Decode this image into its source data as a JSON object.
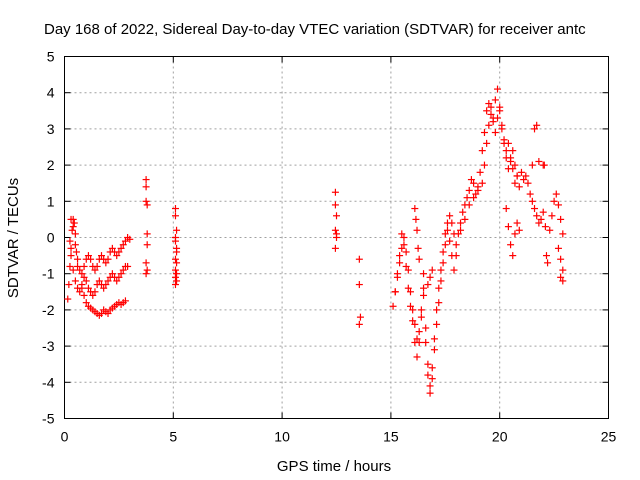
{
  "chart_data": {
    "type": "scatter",
    "title": "Day 168 of 2022, Sidereal Day-to-day VTEC variation (SDTVAR) for receiver antc",
    "xlabel": "GPS time / hours",
    "ylabel": "SDTVAR / TECUs",
    "xlim": [
      0,
      25
    ],
    "ylim": [
      -5,
      5
    ],
    "xticks": [
      0,
      5,
      10,
      15,
      20,
      25
    ],
    "yticks": [
      -5,
      -4,
      -3,
      -2,
      -1,
      0,
      1,
      2,
      3,
      4,
      5
    ],
    "grid": true,
    "marker": "+",
    "series": [
      {
        "name": "SDTVAR",
        "color": "#ff0000",
        "x": [
          0.15,
          0.2,
          0.25,
          0.3,
          0.35,
          0.4,
          0.45,
          0.5,
          0.55,
          0.6,
          0.25,
          0.3,
          0.4,
          0.5,
          0.6,
          0.7,
          0.8,
          0.9,
          1.0,
          1.1,
          1.2,
          1.3,
          1.4,
          1.5,
          1.6,
          1.7,
          1.8,
          1.9,
          2.0,
          2.1,
          2.2,
          2.3,
          2.4,
          2.5,
          2.6,
          2.7,
          2.8,
          2.9,
          3.0,
          0.3,
          0.4,
          0.5,
          0.6,
          0.7,
          0.8,
          0.9,
          1.0,
          1.1,
          1.2,
          1.3,
          1.4,
          1.5,
          1.6,
          1.7,
          1.8,
          1.9,
          2.0,
          2.1,
          2.2,
          2.3,
          2.4,
          2.5,
          2.6,
          2.7,
          2.8,
          2.9,
          0.8,
          0.9,
          1.0,
          1.1,
          1.2,
          1.3,
          1.4,
          1.5,
          1.6,
          1.7,
          1.8,
          1.9,
          2.0,
          2.1,
          2.2,
          2.3,
          2.4,
          2.5,
          2.6,
          2.7,
          2.8,
          3.75,
          3.75,
          3.75,
          3.8,
          3.8,
          3.8,
          3.75,
          3.8,
          3.75,
          5.1,
          5.1,
          5.15,
          5.1,
          5.15,
          5.1,
          5.15,
          5.1,
          5.15,
          5.1,
          5.15,
          5.1,
          5.15,
          5.1,
          12.45,
          12.45,
          12.5,
          12.45,
          12.5,
          12.45,
          12.5,
          13.55,
          13.55,
          13.6,
          13.55,
          15.1,
          15.2,
          15.3,
          15.4,
          15.5,
          15.6,
          15.7,
          15.8,
          15.9,
          16.0,
          16.1,
          16.2,
          16.3,
          16.4,
          16.5,
          16.6,
          16.7,
          16.8,
          16.9,
          17.0,
          17.1,
          17.2,
          17.3,
          17.4,
          17.5,
          17.6,
          17.7,
          17.8,
          17.9,
          18.0,
          18.1,
          18.2,
          18.3,
          18.4,
          18.5,
          18.6,
          18.7,
          18.8,
          18.9,
          19.0,
          15.2,
          15.3,
          15.4,
          15.5,
          15.6,
          15.7,
          15.8,
          15.9,
          16.0,
          16.1,
          16.2,
          16.3,
          16.4,
          16.5,
          16.6,
          16.7,
          16.8,
          16.9,
          17.0,
          17.1,
          17.2,
          17.3,
          17.4,
          17.5,
          17.6,
          17.7,
          17.8,
          17.9,
          18.0,
          18.2,
          18.4,
          18.6,
          18.8,
          19.0,
          16.1,
          16.15,
          16.2,
          16.25,
          16.3,
          16.5,
          16.7,
          16.8,
          16.9,
          19.1,
          19.2,
          19.3,
          19.4,
          19.5,
          19.6,
          19.7,
          19.8,
          19.9,
          20.0,
          20.1,
          20.2,
          20.3,
          20.4,
          20.5,
          20.6,
          20.7,
          20.8,
          19.2,
          19.3,
          19.4,
          19.5,
          19.6,
          19.7,
          19.8,
          19.9,
          20.0,
          20.1,
          20.2,
          20.3,
          20.4,
          20.5,
          20.6,
          20.7,
          20.8,
          20.9,
          21.0,
          21.1,
          20.3,
          20.4,
          20.5,
          20.6,
          20.7,
          20.8,
          20.9,
          21.2,
          21.3,
          21.4,
          21.5,
          21.6,
          21.7,
          21.8,
          21.9,
          22.0,
          22.1,
          21.6,
          21.7,
          21.5,
          21.8,
          22.0,
          22.05,
          22.15,
          22.2,
          22.3,
          22.4,
          22.5,
          22.6,
          22.7,
          22.8,
          22.9,
          22.7,
          22.8,
          22.9,
          22.8,
          22.9
        ],
        "y": [
          -1.7,
          -1.3,
          -0.8,
          -0.3,
          0.2,
          0.5,
          0.4,
          0.1,
          -0.4,
          -0.8,
          -0.1,
          0.5,
          0.3,
          -0.2,
          -0.6,
          -0.9,
          -1.0,
          -0.8,
          -0.6,
          -0.5,
          -0.6,
          -0.8,
          -0.9,
          -0.8,
          -0.6,
          -0.5,
          -0.6,
          -0.7,
          -0.6,
          -0.4,
          -0.3,
          -0.4,
          -0.5,
          -0.4,
          -0.3,
          -0.2,
          -0.1,
          0.0,
          -0.05,
          -0.5,
          -0.9,
          -1.2,
          -1.4,
          -1.5,
          -1.3,
          -1.1,
          -1.2,
          -1.4,
          -1.5,
          -1.6,
          -1.5,
          -1.3,
          -1.2,
          -1.3,
          -1.4,
          -1.3,
          -1.2,
          -1.1,
          -1.0,
          -1.1,
          -1.2,
          -1.1,
          -1.0,
          -0.9,
          -0.8,
          -0.8,
          -1.4,
          -1.6,
          -1.8,
          -1.9,
          -1.95,
          -2.0,
          -2.05,
          -2.1,
          -2.15,
          -2.1,
          -2.0,
          -2.05,
          -2.1,
          -2.0,
          -1.95,
          -1.9,
          -1.85,
          -1.8,
          -1.85,
          -1.8,
          -1.75,
          1.6,
          1.4,
          1.0,
          0.9,
          0.1,
          -0.2,
          -0.7,
          -0.9,
          -1.0,
          0.8,
          0.6,
          0.2,
          -0.1,
          -0.4,
          -0.6,
          -0.7,
          -0.9,
          -1.0,
          -1.1,
          -1.2,
          -1.3,
          -0.3,
          0.0,
          1.25,
          0.9,
          0.6,
          0.2,
          0.0,
          -0.3,
          0.1,
          -0.6,
          -1.3,
          -2.2,
          -2.4,
          -1.9,
          -1.5,
          -1.1,
          -0.7,
          -0.3,
          0.0,
          -0.4,
          -0.9,
          -1.5,
          -2.0,
          -2.4,
          -2.8,
          -2.6,
          -2.0,
          -1.4,
          -2.5,
          -3.5,
          -4.1,
          -3.6,
          -2.8,
          -2.0,
          -1.4,
          -0.9,
          -0.4,
          0.1,
          0.4,
          0.6,
          0.4,
          0.1,
          -0.2,
          0.1,
          0.4,
          0.7,
          0.9,
          1.1,
          1.3,
          1.6,
          1.5,
          1.2,
          1.4,
          -1.5,
          -1.0,
          -0.5,
          0.1,
          -0.2,
          -0.8,
          -1.4,
          -1.9,
          -2.3,
          -2.9,
          -3.3,
          -2.9,
          -2.2,
          -1.6,
          -2.9,
          -3.8,
          -4.3,
          -3.9,
          -3.1,
          -2.4,
          -1.8,
          -1.2,
          -0.7,
          -0.2,
          0.2,
          -0.1,
          -0.5,
          -0.9,
          -0.5,
          0.2,
          0.5,
          0.9,
          1.1,
          1.3,
          0.8,
          0.5,
          0.2,
          -0.3,
          -0.6,
          -1.0,
          -1.3,
          -1.1,
          -0.9,
          1.8,
          2.4,
          2.9,
          3.5,
          3.7,
          3.6,
          3.3,
          3.8,
          4.1,
          3.5,
          3.0,
          2.7,
          2.4,
          2.6,
          2.2,
          1.9,
          1.5,
          1.7,
          1.5,
          2.0,
          2.6,
          3.1,
          3.4,
          3.2,
          2.9,
          3.3,
          3.6,
          3.1,
          2.6,
          2.2,
          1.9,
          2.1,
          2.4,
          2.0,
          1.7,
          1.4,
          1.8,
          1.6,
          0.8,
          0.3,
          -0.2,
          -0.5,
          0.1,
          0.4,
          0.2,
          1.7,
          1.5,
          1.2,
          1.0,
          0.8,
          0.6,
          0.4,
          0.5,
          0.7,
          0.3,
          3.0,
          3.1,
          2.0,
          2.1,
          2.0,
          2.0,
          -0.5,
          -0.7,
          0.2,
          0.6,
          1.0,
          1.2,
          0.9,
          0.5,
          0.1,
          -0.3,
          -0.6,
          -0.9,
          -1.1,
          -1.2
        ]
      }
    ]
  }
}
